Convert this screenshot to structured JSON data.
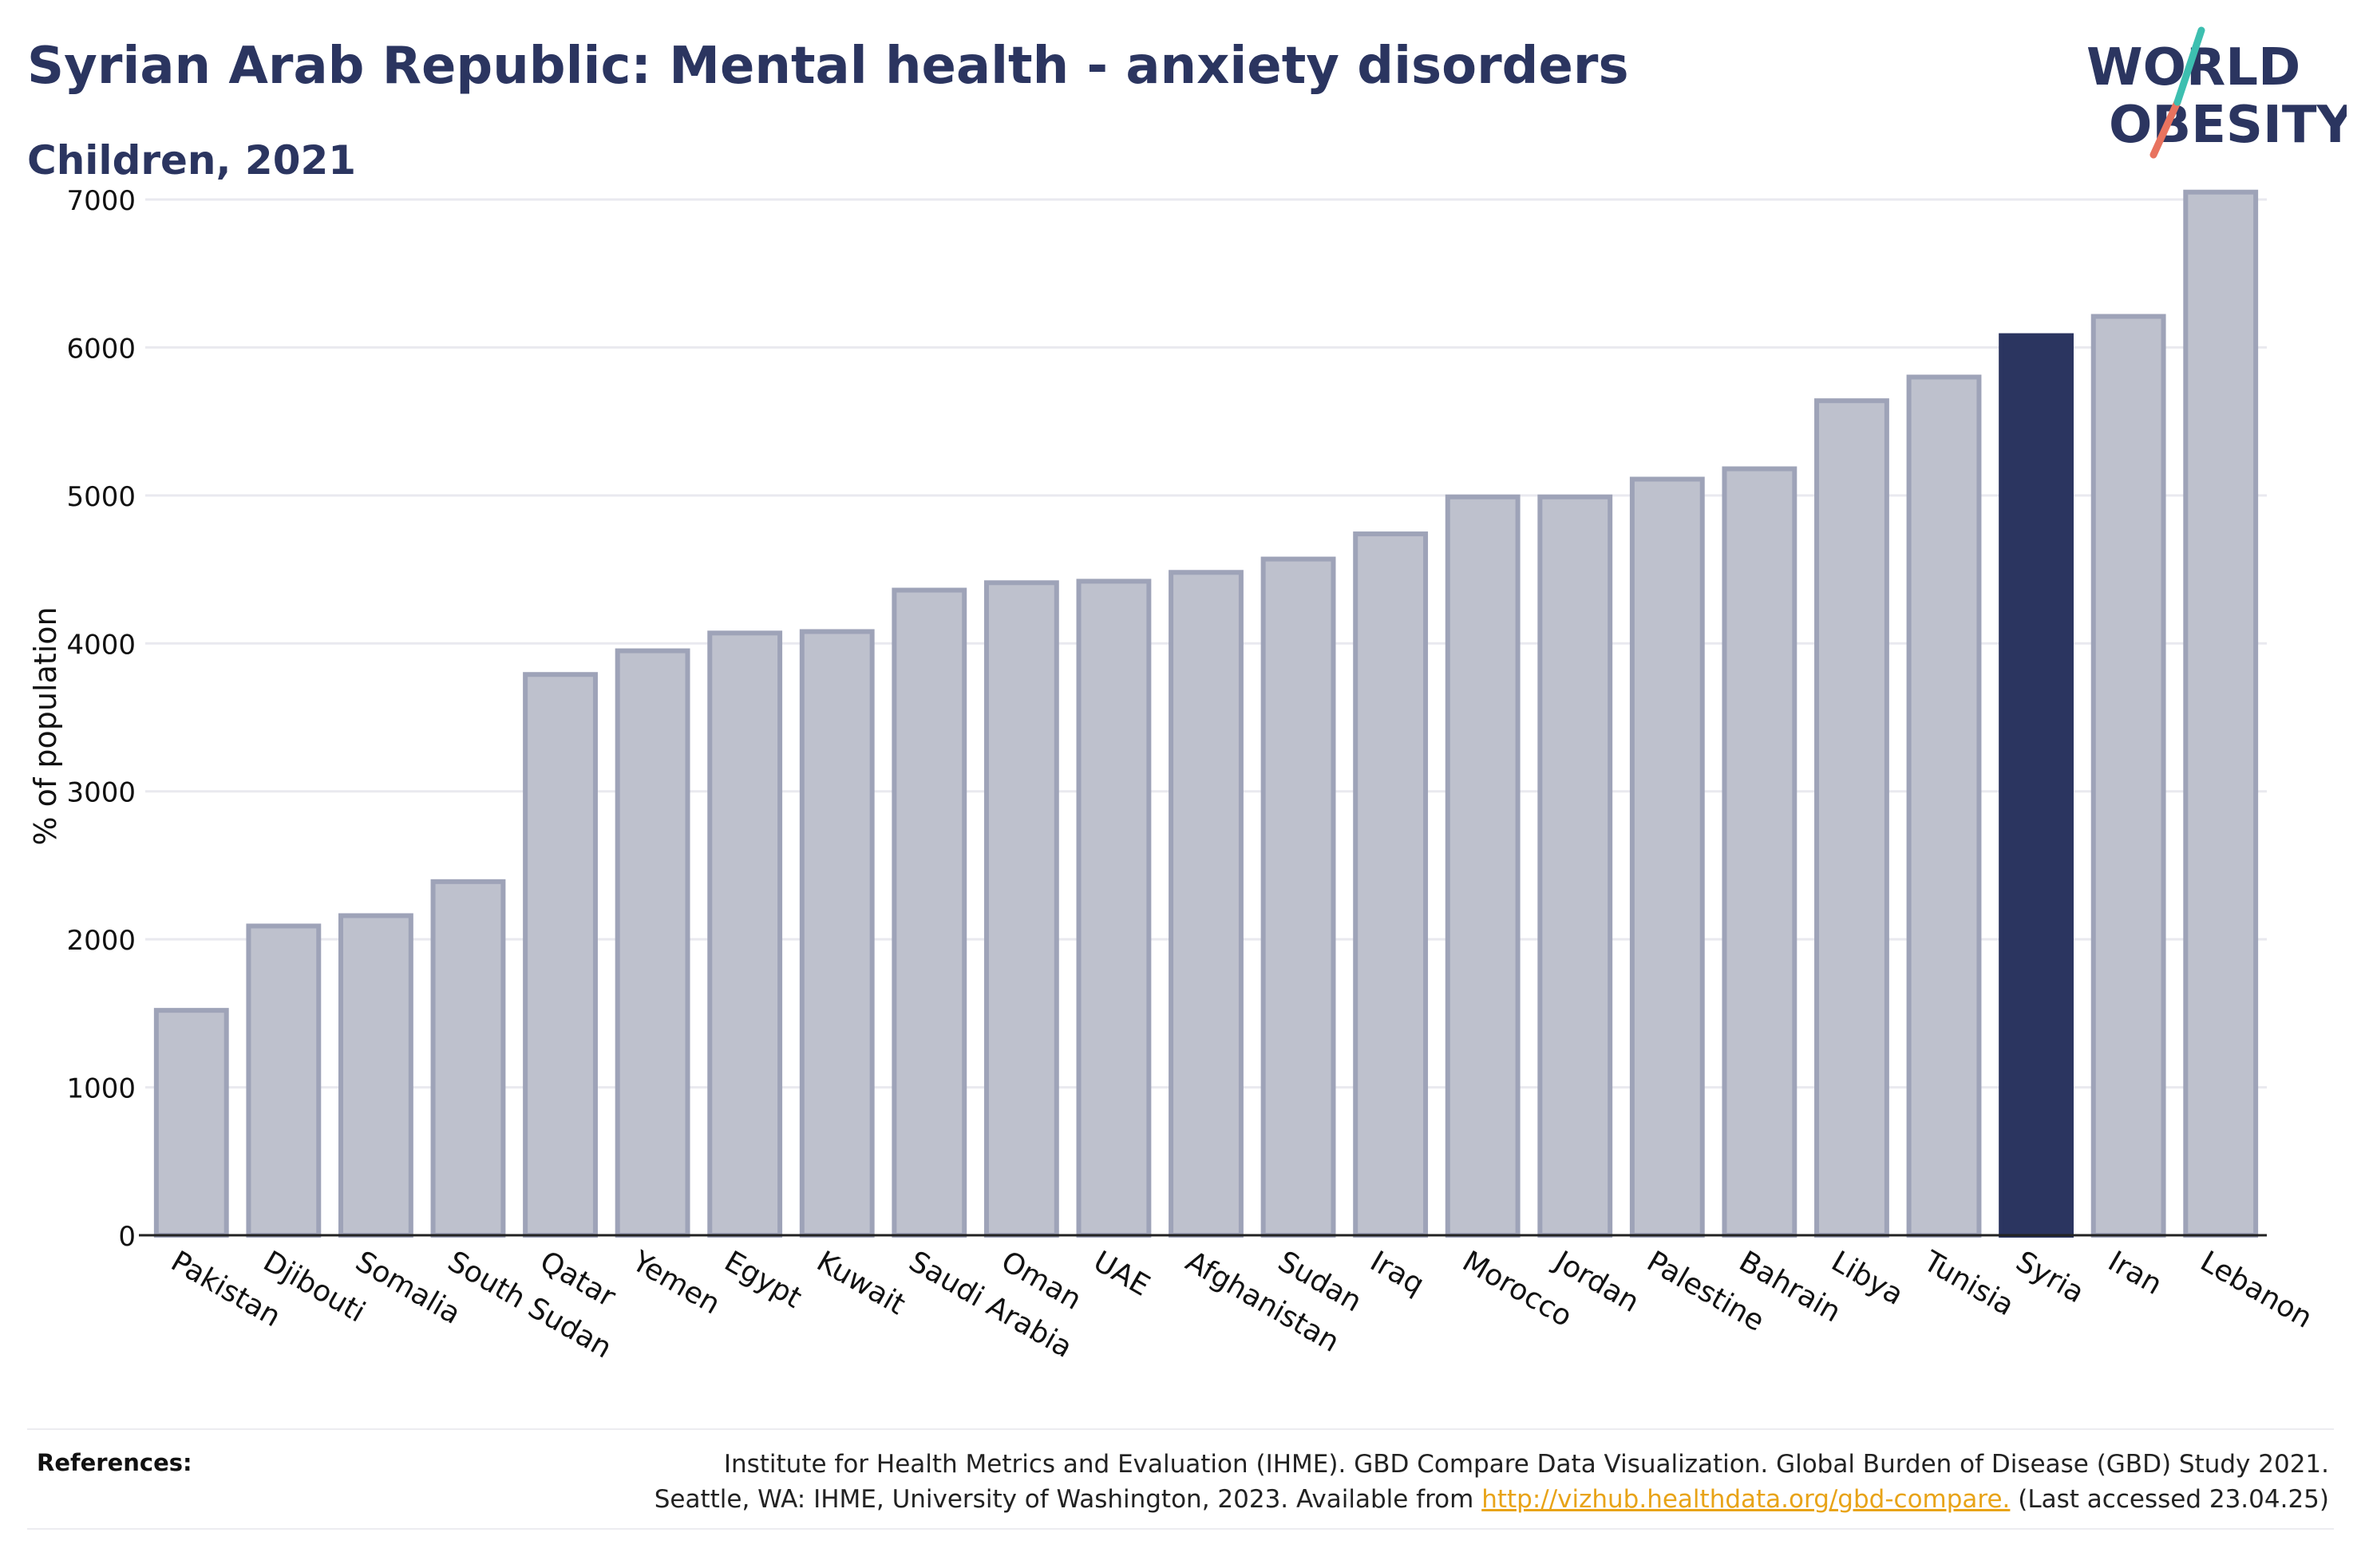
{
  "header": {
    "title": "Syrian Arab Republic: Mental health - anxiety disorders",
    "subtitle": "Children, 2021"
  },
  "logo": {
    "line1": "WORLD",
    "line2": "OBESITY"
  },
  "colors": {
    "highlight": "#2b3560",
    "bar_fill": "#bec1cd",
    "bar_stroke": "#9ea3b8",
    "grid": "#e9e9ef",
    "logo_teal": "#3dbfb0",
    "logo_coral": "#e8735f",
    "link": "#e8a317"
  },
  "chart_data": {
    "type": "bar",
    "title": "Syrian Arab Republic: Mental health - anxiety disorders",
    "subtitle": "Children, 2021",
    "xlabel": "",
    "ylabel": "% of population",
    "ylim": [
      0,
      7000
    ],
    "yticks": [
      0,
      1000,
      2000,
      3000,
      4000,
      5000,
      6000,
      7000
    ],
    "grid": true,
    "highlight_category": "Syria",
    "categories": [
      "Pakistan",
      "Djibouti",
      "Somalia",
      "South Sudan",
      "Qatar",
      "Yemen",
      "Egypt",
      "Kuwait",
      "Saudi Arabia",
      "Oman",
      "UAE",
      "Afghanistan",
      "Sudan",
      "Iraq",
      "Morocco",
      "Jordan",
      "Palestine",
      "Bahrain",
      "Libya",
      "Tunisia",
      "Syria",
      "Iran",
      "Lebanon"
    ],
    "values": [
      1520,
      2090,
      2160,
      2390,
      3790,
      3950,
      4070,
      4080,
      4360,
      4410,
      4420,
      4480,
      4570,
      4740,
      4990,
      4990,
      5110,
      5180,
      5640,
      5800,
      6080,
      6210,
      7050
    ]
  },
  "references": {
    "label": "References:",
    "line1": "Institute for Health Metrics and Evaluation (IHME). GBD Compare Data Visualization. Global Burden of Disease (GBD) Study 2021.",
    "line2_before": "Seattle, WA: IHME, University of Washington, 2023. Available from ",
    "link": "http://vizhub.healthdata.org/gbd-compare.",
    "line2_after": " (Last accessed 23.04.25)"
  }
}
